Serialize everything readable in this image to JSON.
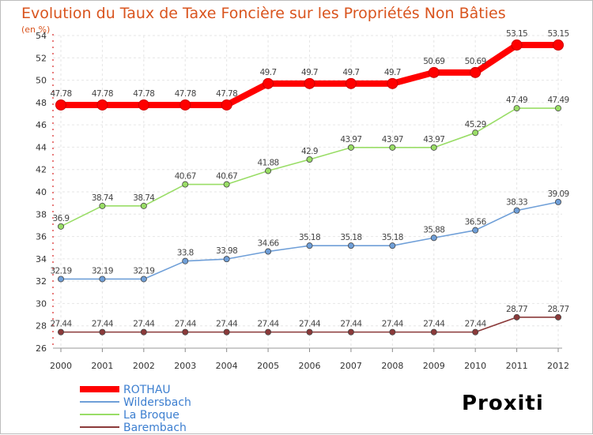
{
  "chart_data": {
    "type": "line",
    "title": "Evolution du Taux de Taxe Foncière sur les Propriétés Non Bâties",
    "ylabel": "(en %)",
    "xlabel": "",
    "x": [
      "2000",
      "2001",
      "2002",
      "2003",
      "2004",
      "2005",
      "2006",
      "2007",
      "2008",
      "2009",
      "2010",
      "2011",
      "2012"
    ],
    "ylim": [
      26,
      54
    ],
    "yticks": [
      "26",
      "28",
      "30",
      "32",
      "34",
      "36",
      "38",
      "40",
      "42",
      "44",
      "46",
      "48",
      "50",
      "52",
      "54"
    ],
    "grid": true,
    "legend_position": "bottom-left",
    "series": [
      {
        "name": "ROTHAU",
        "color": "#ff0000",
        "values": [
          47.78,
          47.78,
          47.78,
          47.78,
          47.78,
          49.7,
          49.7,
          49.7,
          49.7,
          50.69,
          50.69,
          53.15,
          53.15
        ],
        "labels": [
          "47.78",
          "47.78",
          "47.78",
          "47.78",
          "47.78",
          "49.7",
          "49.7",
          "49.7",
          "49.7",
          "50.69",
          "50.69",
          "53.15",
          "53.15"
        ]
      },
      {
        "name": "Wildersbach",
        "color": "#6f9fd8",
        "values": [
          32.19,
          32.19,
          32.19,
          33.8,
          33.98,
          34.66,
          35.18,
          35.18,
          35.18,
          35.88,
          36.56,
          38.33,
          39.09
        ],
        "labels": [
          "32.19",
          "32.19",
          "32.19",
          "33.8",
          "33.98",
          "34.66",
          "35.18",
          "35.18",
          "35.18",
          "35.88",
          "36.56",
          "38.33",
          "39.09"
        ]
      },
      {
        "name": "La Broque",
        "color": "#99dd66",
        "values": [
          36.9,
          38.74,
          38.74,
          40.67,
          40.67,
          41.88,
          42.9,
          43.97,
          43.97,
          43.97,
          45.29,
          47.49,
          47.49
        ],
        "labels": [
          "36.9",
          "38.74",
          "38.74",
          "40.67",
          "40.67",
          "41.88",
          "42.9",
          "43.97",
          "43.97",
          "43.97",
          "45.29",
          "47.49",
          "47.49"
        ]
      },
      {
        "name": "Barembach",
        "color": "#8b3a3a",
        "values": [
          27.44,
          27.44,
          27.44,
          27.44,
          27.44,
          27.44,
          27.44,
          27.44,
          27.44,
          27.44,
          27.44,
          28.77,
          28.77
        ],
        "labels": [
          "27.44",
          "27.44",
          "27.44",
          "27.44",
          "27.44",
          "27.44",
          "27.44",
          "27.44",
          "27.44",
          "27.44",
          "27.44",
          "28.77",
          "28.77"
        ]
      }
    ]
  },
  "branding": {
    "logo_text": "Proxiti",
    "colors": [
      "#3d7fd0",
      "#e23b3b",
      "#f39c12",
      "#7cc242"
    ]
  }
}
